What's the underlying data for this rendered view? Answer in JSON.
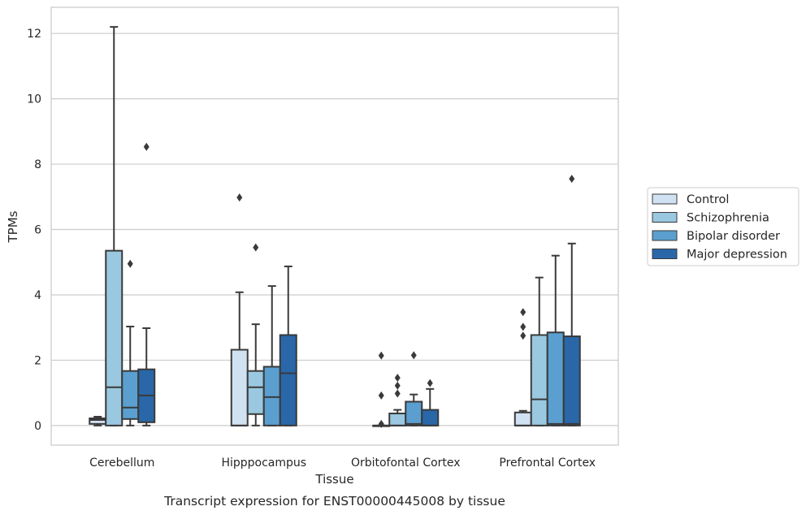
{
  "chart_data": {
    "type": "box",
    "caption": "Transcript expression for ENST00000445008 by tissue",
    "xlabel": "Tissue",
    "ylabel": "TPMs",
    "ylim": [
      -0.6,
      12.8
    ],
    "yticks": [
      0,
      2,
      4,
      6,
      8,
      10,
      12
    ],
    "grid": true,
    "legend_position": "right",
    "categories": [
      "Cerebellum",
      "Hipppocampus",
      "Orbitofontal Cortex",
      "Prefrontal Cortex"
    ],
    "series": [
      {
        "name": "Control",
        "color": "#d0e1f2",
        "boxes": [
          {
            "whislo": 0,
            "q1": 0.05,
            "med": 0.17,
            "q3": 0.22,
            "whishi": 0.27,
            "fliers": []
          },
          {
            "whislo": 0,
            "q1": 0,
            "med": 0,
            "q3": 2.32,
            "whishi": 4.08,
            "fliers": [
              6.98
            ]
          },
          {
            "whislo": 0,
            "q1": 0,
            "med": 0,
            "q3": 0,
            "whishi": 0,
            "fliers": [
              0.05,
              0.92,
              2.14
            ]
          },
          {
            "whislo": 0,
            "q1": 0,
            "med": 0,
            "q3": 0.4,
            "whishi": 0.45,
            "fliers": [
              2.75,
              3.02,
              3.47
            ]
          }
        ]
      },
      {
        "name": "Schizophrenia",
        "color": "#9ac8e0",
        "boxes": [
          {
            "whislo": 0,
            "q1": 0,
            "med": 1.17,
            "q3": 5.35,
            "whishi": 12.2,
            "fliers": []
          },
          {
            "whislo": 0,
            "q1": 0.35,
            "med": 1.17,
            "q3": 1.67,
            "whishi": 3.1,
            "fliers": [
              5.45
            ]
          },
          {
            "whislo": 0,
            "q1": 0,
            "med": 0,
            "q3": 0.37,
            "whishi": 0.48,
            "fliers": [
              0.98,
              1.22,
              1.46
            ]
          },
          {
            "whislo": 0,
            "q1": 0,
            "med": 0.8,
            "q3": 2.77,
            "whishi": 4.53,
            "fliers": []
          }
        ]
      },
      {
        "name": "Bipolar disorder",
        "color": "#5a9fcf",
        "boxes": [
          {
            "whislo": 0,
            "q1": 0.2,
            "med": 0.55,
            "q3": 1.67,
            "whishi": 3.03,
            "fliers": [
              4.95
            ]
          },
          {
            "whislo": 0,
            "q1": 0,
            "med": 0.87,
            "q3": 1.8,
            "whishi": 4.27,
            "fliers": []
          },
          {
            "whislo": 0,
            "q1": 0,
            "med": 0.05,
            "q3": 0.73,
            "whishi": 0.95,
            "fliers": [
              2.15
            ]
          },
          {
            "whislo": 0,
            "q1": 0,
            "med": 0.05,
            "q3": 2.85,
            "whishi": 5.2,
            "fliers": []
          }
        ]
      },
      {
        "name": "Major depression",
        "color": "#2967a9",
        "boxes": [
          {
            "whislo": 0,
            "q1": 0.1,
            "med": 0.92,
            "q3": 1.72,
            "whishi": 2.98,
            "fliers": [
              8.53
            ]
          },
          {
            "whislo": 0,
            "q1": 0,
            "med": 1.6,
            "q3": 2.77,
            "whishi": 4.87,
            "fliers": []
          },
          {
            "whislo": 0,
            "q1": 0,
            "med": 0,
            "q3": 0.48,
            "whishi": 1.12,
            "fliers": [
              1.3
            ]
          },
          {
            "whislo": 0,
            "q1": 0,
            "med": 0.05,
            "q3": 2.73,
            "whishi": 5.57,
            "fliers": [
              7.55
            ]
          }
        ]
      }
    ]
  }
}
